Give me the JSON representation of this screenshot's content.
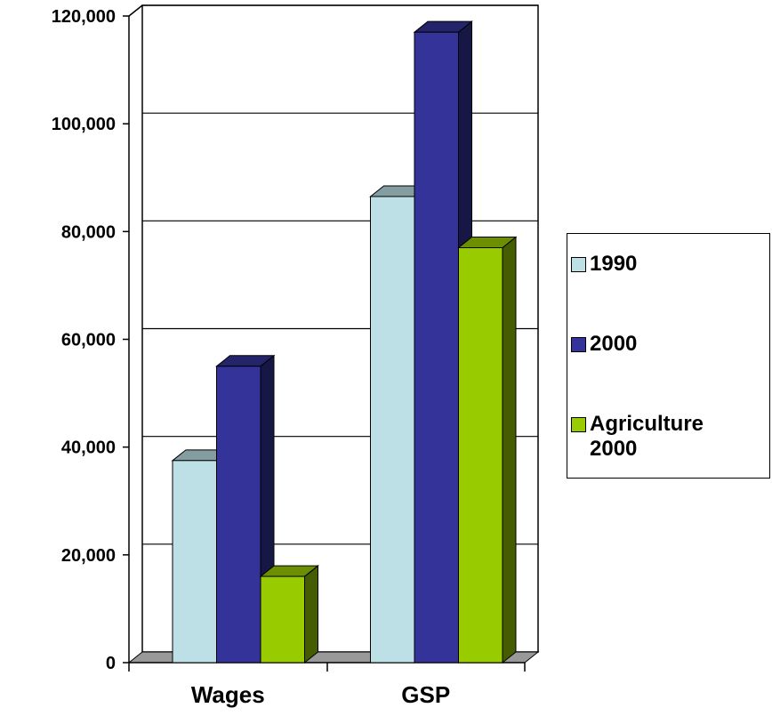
{
  "chart_data": {
    "type": "bar3d",
    "categories": [
      "Wages",
      "GSP"
    ],
    "series": [
      {
        "name": "1990",
        "color": "#bde0e6",
        "values": [
          37500,
          86500
        ]
      },
      {
        "name": "2000",
        "color": "#333399",
        "values": [
          55000,
          117000
        ]
      },
      {
        "name": "Agriculture 2000",
        "color": "#99cc00",
        "values": [
          16000,
          77000
        ]
      }
    ],
    "ylim": [
      0,
      120000
    ],
    "yticks": [
      0,
      {
        "value": 20000,
        "label": "20,000"
      },
      {
        "value": 40000,
        "label": "40,000"
      },
      {
        "value": 60000,
        "label": "60,000"
      },
      {
        "value": 80000,
        "label": "80,000"
      },
      {
        "value": 100000,
        "label": "100,000"
      },
      {
        "value": 120000,
        "label": "120,000"
      }
    ],
    "grid": true,
    "legend": "right"
  }
}
